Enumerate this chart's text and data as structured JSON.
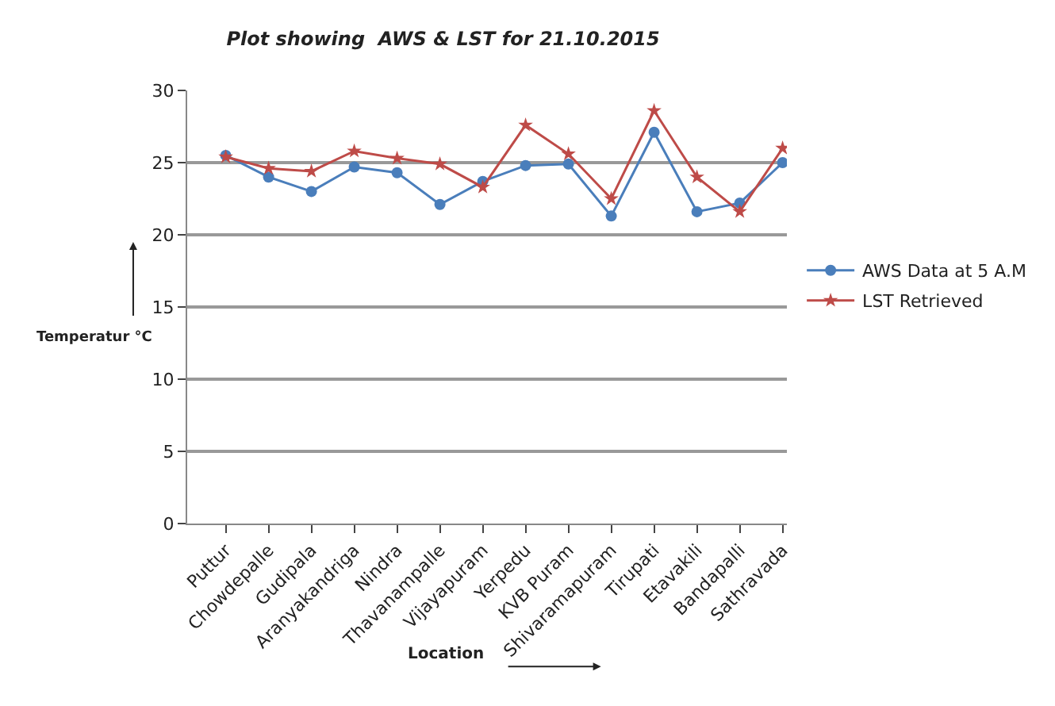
{
  "chart_data": {
    "type": "line",
    "title": "Plot showing  AWS & LST for 21.10.2015",
    "xlabel": "Location",
    "ylabel": "Temperatur °C",
    "categories": [
      "Puttur",
      "Chowdepalle",
      "Gudipala",
      "Aranyakandriga",
      "Nindra",
      "Thavanampalle",
      "Vijayapuram",
      "Yerpedu",
      "KVB Puram",
      "Shivaramapuram",
      "Tirupati",
      "Etavakili",
      "Bandapalli",
      "Sathravada"
    ],
    "series": [
      {
        "name": "AWS Data at 5 A.M",
        "color": "#4a7ebb",
        "marker": "circle",
        "values": [
          25.5,
          24.0,
          23.0,
          24.7,
          24.3,
          22.1,
          23.7,
          24.8,
          24.9,
          21.3,
          27.1,
          21.6,
          22.2,
          25.0
        ]
      },
      {
        "name": "LST Retrieved",
        "color": "#be4b48",
        "marker": "star",
        "values": [
          25.4,
          24.6,
          24.4,
          25.8,
          25.3,
          24.9,
          23.3,
          27.6,
          25.6,
          22.5,
          28.6,
          24.0,
          21.6,
          26.0
        ]
      }
    ],
    "ylim": [
      0,
      30
    ],
    "yticks": [
      0,
      5,
      10,
      15,
      20,
      25,
      30
    ],
    "grid": "y",
    "legend": "right",
    "line_style": "solid"
  }
}
